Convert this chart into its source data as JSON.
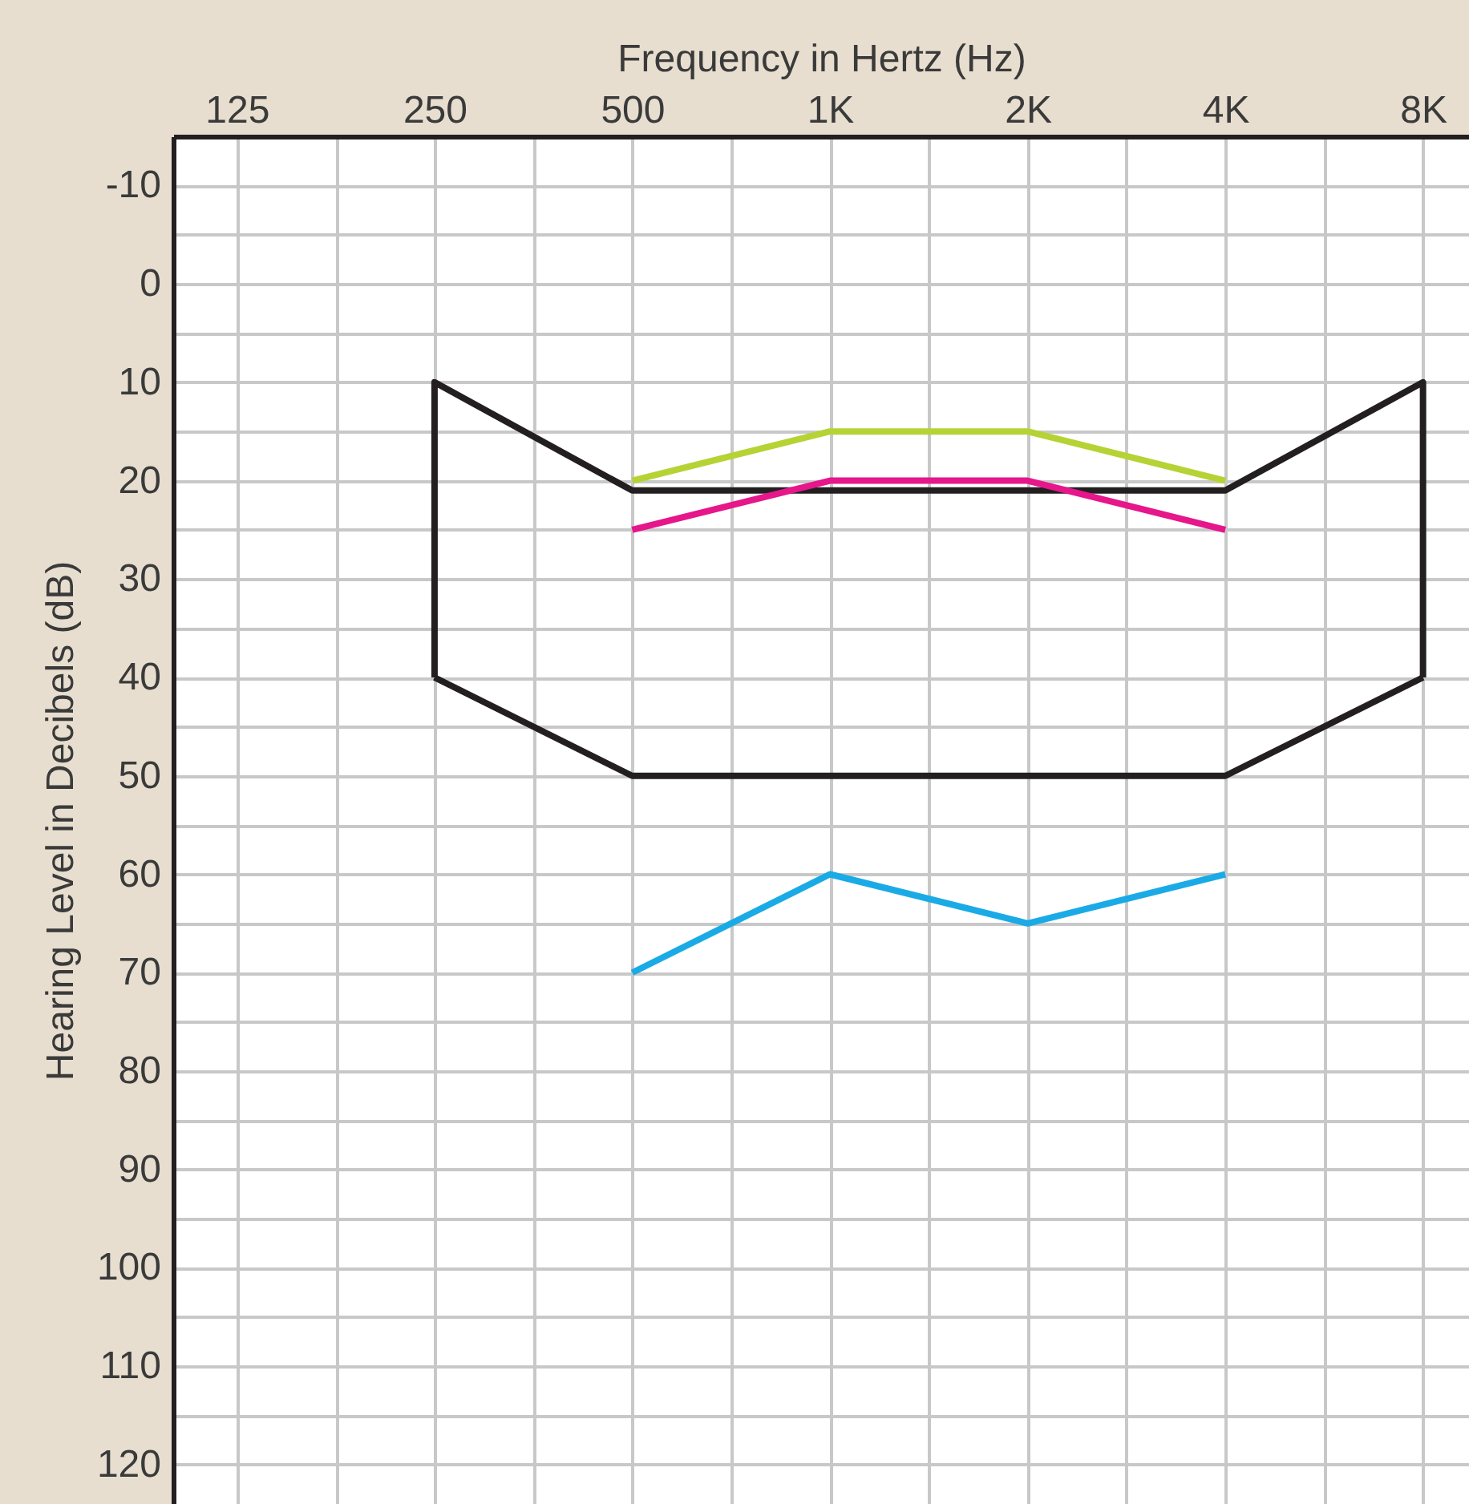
{
  "chart_data": {
    "type": "line",
    "xlabel": "Frequency in Hertz (Hz)",
    "ylabel": "Hearing Level in Decibels (dB)",
    "log": "x",
    "xlim": [
      100,
      9400
    ],
    "xticks": [
      125,
      {
        "value": 177,
        "label": null
      },
      250,
      {
        "value": 354,
        "label": null
      },
      500,
      {
        "value": 707,
        "label": null
      },
      {
        "value": 1000,
        "label": "1K"
      },
      {
        "value": 1414,
        "label": null
      },
      {
        "value": 2000,
        "label": "2K"
      },
      {
        "value": 2828,
        "label": null
      },
      {
        "value": 4000,
        "label": "4K"
      },
      {
        "value": 5657,
        "label": null
      },
      {
        "value": 8000,
        "label": "8K"
      }
    ],
    "ylim": [
      124,
      -15
    ],
    "yticks": [
      -10,
      {
        "value": -5,
        "label": null
      },
      0,
      {
        "value": 5,
        "label": null
      },
      10,
      {
        "value": 15,
        "label": null
      },
      20,
      {
        "value": 25,
        "label": null
      },
      30,
      {
        "value": 35,
        "label": null
      },
      40,
      {
        "value": 45,
        "label": null
      },
      50,
      {
        "value": 55,
        "label": null
      },
      60,
      {
        "value": 65,
        "label": null
      },
      70,
      {
        "value": 75,
        "label": null
      },
      80,
      {
        "value": 85,
        "label": null
      },
      90,
      {
        "value": 95,
        "label": null
      },
      100,
      {
        "value": 105,
        "label": null
      },
      110,
      {
        "value": 115,
        "label": null
      },
      120
    ],
    "grid": true,
    "series": [
      {
        "color": "#231f20",
        "x": [
          250,
          250,
          500,
          4000,
          8000,
          8000
        ],
        "values": [
          40,
          10,
          21,
          21,
          10,
          40
        ]
      },
      {
        "color": "#231f20",
        "x": [
          250,
          500,
          4000,
          8000
        ],
        "values": [
          40,
          50,
          50,
          40
        ]
      },
      {
        "color": "#b5d334",
        "x": [
          500,
          1000,
          2000,
          4000
        ],
        "values": [
          20,
          15,
          15,
          20
        ]
      },
      {
        "color": "#e6168b",
        "x": [
          500,
          1000,
          2000,
          4000
        ],
        "values": [
          25,
          20,
          20,
          25
        ]
      },
      {
        "color": "#1aabe6",
        "x": [
          500,
          1000,
          2000,
          4000
        ],
        "values": [
          70,
          60,
          65,
          60
        ]
      }
    ]
  }
}
